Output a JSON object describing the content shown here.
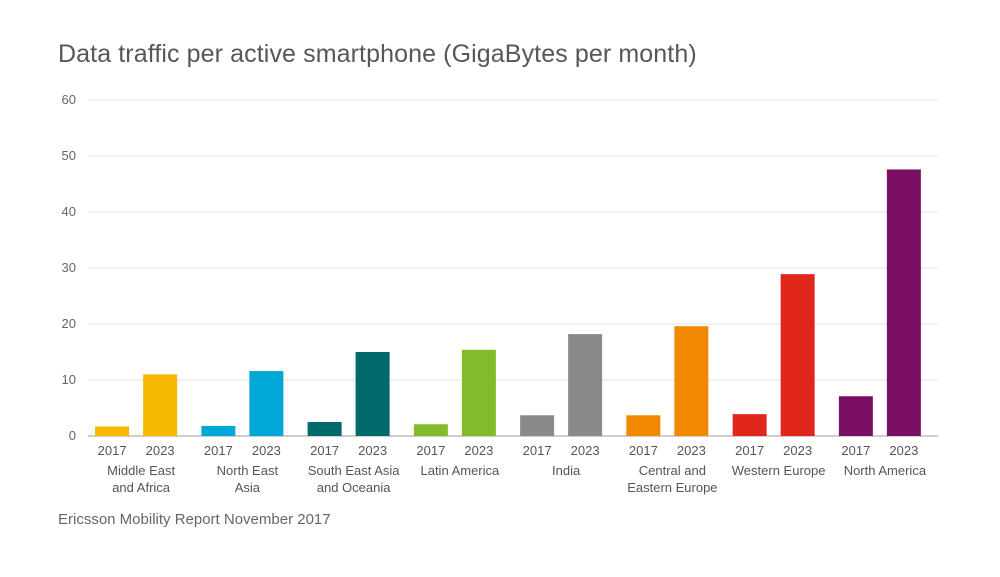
{
  "chart_data": {
    "type": "bar",
    "title": "Data traffic per active smartphone (GigaBytes per month)",
    "source": "Ericsson Mobility Report November 2017",
    "ylim": [
      0,
      60
    ],
    "yticks": [
      "0",
      "10",
      "20",
      "30",
      "40",
      "50",
      "60"
    ],
    "years": [
      "2017",
      "2023"
    ],
    "groups": [
      {
        "label": [
          "Middle East",
          "and Africa"
        ],
        "color": "#f6b700",
        "values": [
          1.7,
          11
        ]
      },
      {
        "label": [
          "North East",
          "Asia"
        ],
        "color": "#00a8d8",
        "values": [
          1.8,
          11.6
        ]
      },
      {
        "label": [
          "South East Asia",
          "and Oceania"
        ],
        "color": "#006a6a",
        "values": [
          2.5,
          15
        ]
      },
      {
        "label": [
          "Latin America"
        ],
        "color": "#82bc2c",
        "values": [
          2.1,
          15.4
        ]
      },
      {
        "label": [
          "India"
        ],
        "color": "#8a8a8a",
        "values": [
          3.7,
          18.2
        ]
      },
      {
        "label": [
          "Central and",
          "Eastern Europe"
        ],
        "color": "#f08800",
        "values": [
          3.7,
          19.6
        ]
      },
      {
        "label": [
          "Western Europe"
        ],
        "color": "#e1261c",
        "values": [
          3.9,
          28.9
        ]
      },
      {
        "label": [
          "North America"
        ],
        "color": "#7a0f64",
        "values": [
          7.1,
          47.6
        ]
      }
    ]
  }
}
